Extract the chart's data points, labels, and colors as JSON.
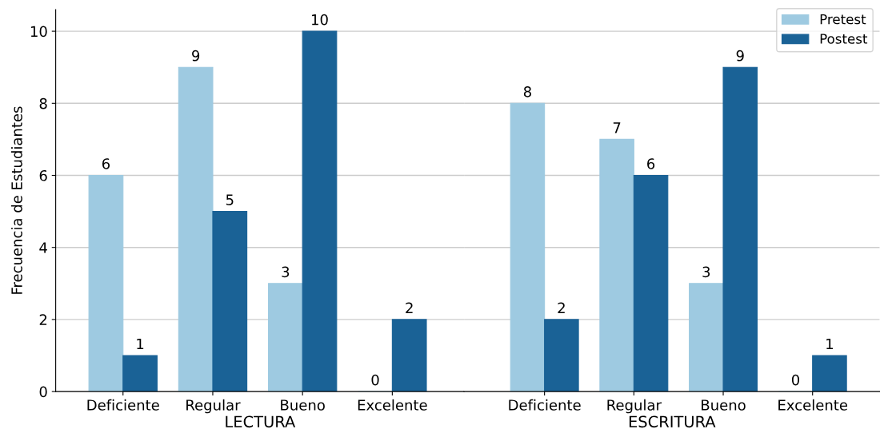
{
  "chart_data": [
    {
      "type": "bar",
      "xlabel": "LECTURA",
      "ylabel": "Frecuencia de Estudiantes",
      "categories": [
        "Deficiente",
        "Regular",
        "Bueno",
        "Excelente"
      ],
      "series": [
        {
          "color": "#9ecae1",
          "values": [
            6,
            9,
            3,
            0
          ]
        },
        {
          "color": "#1a6296",
          "values": [
            1,
            5,
            10,
            2
          ]
        }
      ],
      "ylim": [
        0,
        10.6
      ],
      "yticks": [
        0,
        2,
        4,
        6,
        8,
        10
      ],
      "grid": "y",
      "data_labels": true
    },
    {
      "type": "bar",
      "xlabel": "ESCRITURA",
      "categories": [
        "Deficiente",
        "Regular",
        "Bueno",
        "Excelente"
      ],
      "series": [
        {
          "name": "Pretest",
          "color": "#9ecae1",
          "values": [
            8,
            7,
            3,
            0
          ]
        },
        {
          "name": "Postest",
          "color": "#1a6296",
          "values": [
            2,
            6,
            9,
            1
          ]
        }
      ],
      "ylim": [
        0,
        10.6
      ],
      "yticks": [
        0,
        2,
        4,
        6,
        8,
        10
      ],
      "grid": "y",
      "data_labels": true,
      "legend": "top right",
      "tick_labels": "x"
    }
  ]
}
